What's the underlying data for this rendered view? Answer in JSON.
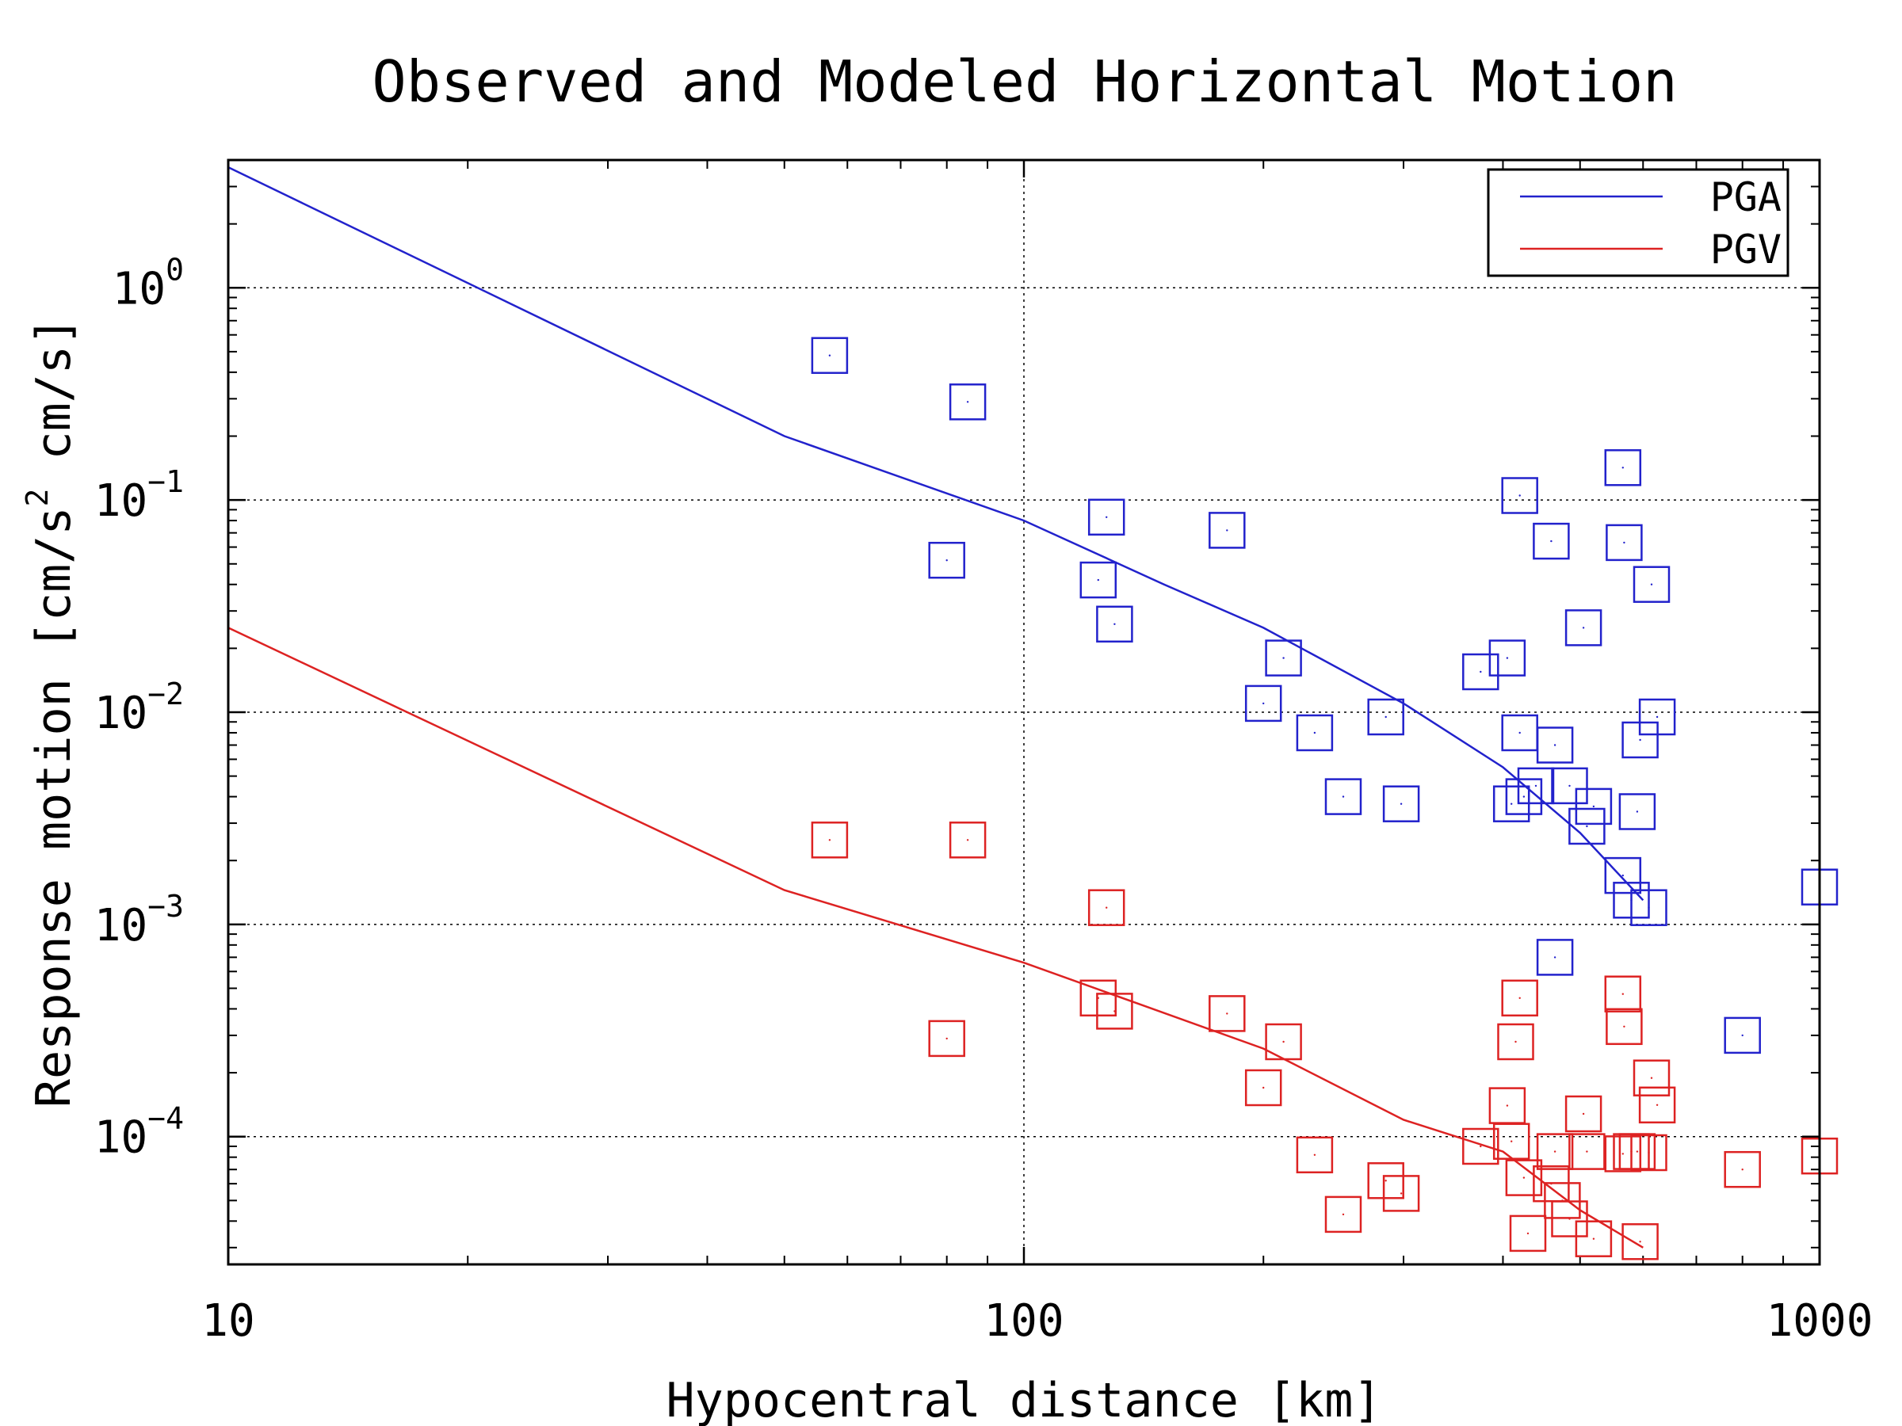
{
  "chart_data": {
    "type": "scatter",
    "title": "Observed and Modeled Horizontal Motion",
    "xlabel": "Hypocentral distance [km]",
    "ylabel": {
      "part1": "Response motion [cm/s",
      "sup": "2",
      "part2": " cm/s]"
    },
    "xscale": "log",
    "yscale": "log",
    "xlim": [
      10,
      1000
    ],
    "ylim": [
      2.5e-05,
      4
    ],
    "grid": true,
    "legend_position": "top-right",
    "x_ticks": [
      {
        "value": 10,
        "label": "10"
      },
      {
        "value": 100,
        "label": "100"
      },
      {
        "value": 1000,
        "label": "1000"
      }
    ],
    "y_ticks": [
      {
        "value": 1,
        "base": "10",
        "exp": "0"
      },
      {
        "value": 0.1,
        "base": "10",
        "exp": "−1"
      },
      {
        "value": 0.01,
        "base": "10",
        "exp": "−2"
      },
      {
        "value": 0.001,
        "base": "10",
        "exp": "−3"
      },
      {
        "value": 0.0001,
        "base": "10",
        "exp": "−4"
      }
    ],
    "series": [
      {
        "name": "PGA",
        "color": "#2222cc",
        "model_line": [
          [
            10,
            3.7
          ],
          [
            50,
            0.2
          ],
          [
            100,
            0.08
          ],
          [
            150,
            0.04
          ],
          [
            200,
            0.025
          ],
          [
            300,
            0.011
          ],
          [
            400,
            0.0055
          ],
          [
            500,
            0.0027
          ],
          [
            600,
            0.0013
          ]
        ],
        "observed": [
          [
            57,
            0.48
          ],
          [
            85,
            0.29
          ],
          [
            80,
            0.052
          ],
          [
            127,
            0.083
          ],
          [
            124,
            0.042
          ],
          [
            130,
            0.026
          ],
          [
            180,
            0.072
          ],
          [
            212,
            0.018
          ],
          [
            200,
            0.011
          ],
          [
            232,
            0.008
          ],
          [
            252,
            0.004
          ],
          [
            285,
            0.0095
          ],
          [
            298,
            0.0037
          ],
          [
            375,
            0.0155
          ],
          [
            405,
            0.018
          ],
          [
            420,
            0.008
          ],
          [
            410,
            0.0037
          ],
          [
            425,
            0.004
          ],
          [
            440,
            0.0045
          ],
          [
            420,
            0.105
          ],
          [
            460,
            0.064
          ],
          [
            465,
            0.007
          ],
          [
            485,
            0.0045
          ],
          [
            505,
            0.025
          ],
          [
            510,
            0.0029
          ],
          [
            520,
            0.0036
          ],
          [
            566,
            0.142
          ],
          [
            568,
            0.063
          ],
          [
            566,
            0.0017
          ],
          [
            580,
            0.0013
          ],
          [
            590,
            0.0034
          ],
          [
            595,
            0.0074
          ],
          [
            615,
            0.04
          ],
          [
            625,
            0.0095
          ],
          [
            610,
            0.0012
          ],
          [
            465,
            0.0007
          ],
          [
            800,
            0.0003
          ],
          [
            1000,
            0.0015
          ]
        ]
      },
      {
        "name": "PGV",
        "color": "#dd2222",
        "model_line": [
          [
            10,
            0.025
          ],
          [
            50,
            0.00145
          ],
          [
            100,
            0.00066
          ],
          [
            200,
            0.00026
          ],
          [
            300,
            0.00012
          ],
          [
            400,
            8.5e-05
          ],
          [
            500,
            4.5e-05
          ],
          [
            600,
            3e-05
          ]
        ],
        "observed": [
          [
            57,
            0.0025
          ],
          [
            85,
            0.0025
          ],
          [
            80,
            0.00029
          ],
          [
            127,
            0.0012
          ],
          [
            124,
            0.00045
          ],
          [
            130,
            0.00039
          ],
          [
            180,
            0.00038
          ],
          [
            212,
            0.00028
          ],
          [
            200,
            0.00017
          ],
          [
            232,
            8.2e-05
          ],
          [
            252,
            4.3e-05
          ],
          [
            285,
            6.2e-05
          ],
          [
            298,
            5.4e-05
          ],
          [
            375,
            9e-05
          ],
          [
            405,
            0.00014
          ],
          [
            410,
            9.5e-05
          ],
          [
            415,
            0.00028
          ],
          [
            420,
            0.00045
          ],
          [
            425,
            6.4e-05
          ],
          [
            430,
            3.5e-05
          ],
          [
            460,
            6e-05
          ],
          [
            465,
            8.5e-05
          ],
          [
            475,
            5e-05
          ],
          [
            485,
            4.1e-05
          ],
          [
            505,
            0.000128
          ],
          [
            510,
            8.5e-05
          ],
          [
            520,
            3.3e-05
          ],
          [
            566,
            0.00047
          ],
          [
            568,
            0.00033
          ],
          [
            566,
            8.3e-05
          ],
          [
            580,
            8.5e-05
          ],
          [
            590,
            8.5e-05
          ],
          [
            595,
            3.2e-05
          ],
          [
            615,
            0.000189
          ],
          [
            625,
            0.000141
          ],
          [
            610,
            8.4e-05
          ],
          [
            800,
            7e-05
          ],
          [
            1000,
            8.1e-05
          ]
        ]
      }
    ]
  }
}
